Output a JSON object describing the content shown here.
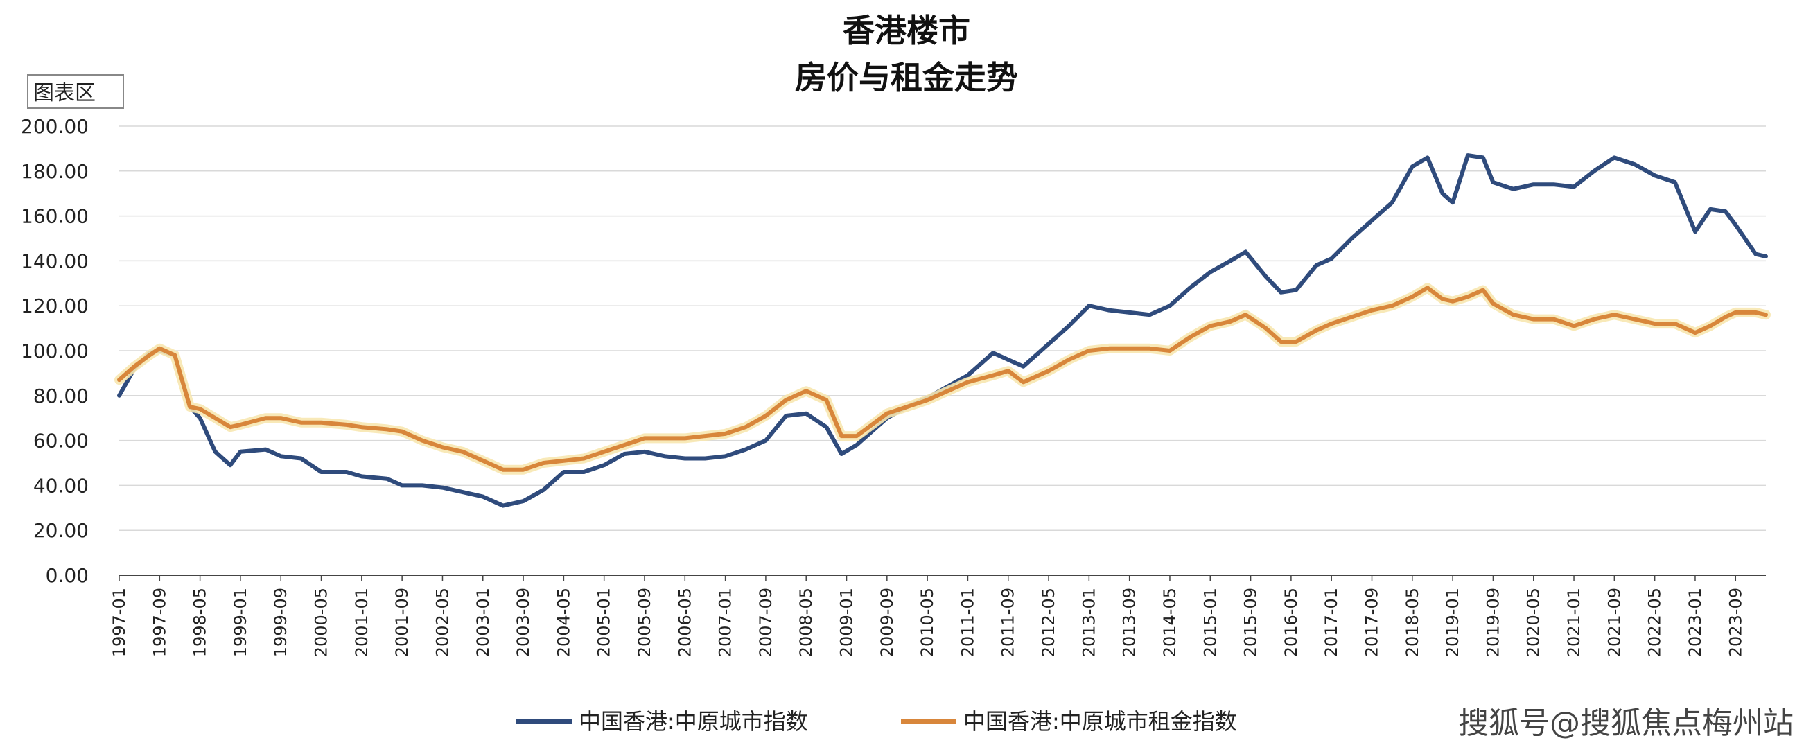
{
  "colors": {
    "price_series": "#2f4b7c",
    "rent_series": "#d8863b",
    "rent_glow": "#f7e7b0",
    "grid": "#d9d9d9",
    "axis": "#444444"
  },
  "chart_data": {
    "type": "line",
    "title": [
      "香港楼市",
      "房价与租金走势"
    ],
    "unit_label": "图表区",
    "ylim": [
      0,
      200
    ],
    "yticks": [
      "0.00",
      "20.00",
      "40.00",
      "60.00",
      "80.00",
      "100.00",
      "120.00",
      "140.00",
      "160.00",
      "180.00",
      "200.00"
    ],
    "grid": true,
    "legend_position": "bottom",
    "x_start": "1997-01",
    "x_end": "2024-03",
    "xticks": [
      "1997-01",
      "1997-09",
      "1998-05",
      "1999-01",
      "1999-09",
      "2000-05",
      "2001-01",
      "2001-09",
      "2002-05",
      "2003-01",
      "2003-09",
      "2004-05",
      "2005-01",
      "2005-09",
      "2006-05",
      "2007-01",
      "2007-09",
      "2008-05",
      "2009-01",
      "2009-09",
      "2010-05",
      "2011-01",
      "2011-09",
      "2012-05",
      "2013-01",
      "2013-09",
      "2014-05",
      "2015-01",
      "2015-09",
      "2016-05",
      "2017-01",
      "2017-09",
      "2018-05",
      "2019-01",
      "2019-09",
      "2020-05",
      "2021-01",
      "2021-09",
      "2022-05",
      "2023-01",
      "2023-09"
    ],
    "series": [
      {
        "name": "中国香港:中原城市指数",
        "color_key": "price_series",
        "points": [
          [
            "1997-01",
            80
          ],
          [
            "1997-04",
            92
          ],
          [
            "1997-07",
            99
          ],
          [
            "1997-09",
            100
          ],
          [
            "1997-12",
            98
          ],
          [
            "1998-03",
            75
          ],
          [
            "1998-05",
            70
          ],
          [
            "1998-08",
            55
          ],
          [
            "1998-11",
            49
          ],
          [
            "1999-01",
            55
          ],
          [
            "1999-06",
            56
          ],
          [
            "1999-09",
            53
          ],
          [
            "2000-01",
            52
          ],
          [
            "2000-05",
            46
          ],
          [
            "2000-10",
            46
          ],
          [
            "2001-01",
            44
          ],
          [
            "2001-06",
            43
          ],
          [
            "2001-09",
            40
          ],
          [
            "2002-01",
            40
          ],
          [
            "2002-05",
            39
          ],
          [
            "2002-09",
            37
          ],
          [
            "2003-01",
            35
          ],
          [
            "2003-05",
            31
          ],
          [
            "2003-09",
            33
          ],
          [
            "2004-01",
            38
          ],
          [
            "2004-05",
            46
          ],
          [
            "2004-09",
            46
          ],
          [
            "2005-01",
            49
          ],
          [
            "2005-05",
            54
          ],
          [
            "2005-09",
            55
          ],
          [
            "2006-01",
            53
          ],
          [
            "2006-05",
            52
          ],
          [
            "2006-09",
            52
          ],
          [
            "2007-01",
            53
          ],
          [
            "2007-05",
            56
          ],
          [
            "2007-09",
            60
          ],
          [
            "2008-01",
            71
          ],
          [
            "2008-05",
            72
          ],
          [
            "2008-09",
            66
          ],
          [
            "2008-12",
            54
          ],
          [
            "2009-03",
            58
          ],
          [
            "2009-09",
            70
          ],
          [
            "2010-01",
            75
          ],
          [
            "2010-05",
            79
          ],
          [
            "2010-09",
            84
          ],
          [
            "2011-01",
            89
          ],
          [
            "2011-06",
            99
          ],
          [
            "2011-09",
            96
          ],
          [
            "2011-12",
            93
          ],
          [
            "2012-05",
            103
          ],
          [
            "2012-09",
            111
          ],
          [
            "2013-01",
            120
          ],
          [
            "2013-05",
            118
          ],
          [
            "2013-09",
            117
          ],
          [
            "2014-01",
            116
          ],
          [
            "2014-05",
            120
          ],
          [
            "2014-09",
            128
          ],
          [
            "2015-01",
            135
          ],
          [
            "2015-05",
            140
          ],
          [
            "2015-08",
            144
          ],
          [
            "2015-12",
            133
          ],
          [
            "2016-03",
            126
          ],
          [
            "2016-06",
            127
          ],
          [
            "2016-10",
            138
          ],
          [
            "2017-01",
            141
          ],
          [
            "2017-05",
            150
          ],
          [
            "2017-09",
            158
          ],
          [
            "2018-01",
            166
          ],
          [
            "2018-05",
            182
          ],
          [
            "2018-08",
            186
          ],
          [
            "2018-11",
            170
          ],
          [
            "2019-01",
            166
          ],
          [
            "2019-04",
            187
          ],
          [
            "2019-07",
            186
          ],
          [
            "2019-09",
            175
          ],
          [
            "2020-01",
            172
          ],
          [
            "2020-05",
            174
          ],
          [
            "2020-09",
            174
          ],
          [
            "2021-01",
            173
          ],
          [
            "2021-05",
            180
          ],
          [
            "2021-09",
            186
          ],
          [
            "2022-01",
            183
          ],
          [
            "2022-05",
            178
          ],
          [
            "2022-09",
            175
          ],
          [
            "2023-01",
            153
          ],
          [
            "2023-04",
            163
          ],
          [
            "2023-07",
            162
          ],
          [
            "2023-09",
            156
          ],
          [
            "2024-01",
            143
          ],
          [
            "2024-03",
            142
          ]
        ]
      },
      {
        "name": "中国香港:中原城市租金指数",
        "color_key": "rent_series",
        "points": [
          [
            "1997-01",
            87
          ],
          [
            "1997-04",
            93
          ],
          [
            "1997-07",
            98
          ],
          [
            "1997-09",
            101
          ],
          [
            "1997-12",
            98
          ],
          [
            "1998-03",
            75
          ],
          [
            "1998-05",
            74
          ],
          [
            "1998-08",
            70
          ],
          [
            "1998-11",
            66
          ],
          [
            "1999-01",
            67
          ],
          [
            "1999-06",
            70
          ],
          [
            "1999-09",
            70
          ],
          [
            "2000-01",
            68
          ],
          [
            "2000-05",
            68
          ],
          [
            "2000-10",
            67
          ],
          [
            "2001-01",
            66
          ],
          [
            "2001-06",
            65
          ],
          [
            "2001-09",
            64
          ],
          [
            "2002-01",
            60
          ],
          [
            "2002-05",
            57
          ],
          [
            "2002-09",
            55
          ],
          [
            "2003-01",
            51
          ],
          [
            "2003-05",
            47
          ],
          [
            "2003-09",
            47
          ],
          [
            "2004-01",
            50
          ],
          [
            "2004-05",
            51
          ],
          [
            "2004-09",
            52
          ],
          [
            "2005-01",
            55
          ],
          [
            "2005-05",
            58
          ],
          [
            "2005-09",
            61
          ],
          [
            "2006-01",
            61
          ],
          [
            "2006-05",
            61
          ],
          [
            "2006-09",
            62
          ],
          [
            "2007-01",
            63
          ],
          [
            "2007-05",
            66
          ],
          [
            "2007-09",
            71
          ],
          [
            "2008-01",
            78
          ],
          [
            "2008-05",
            82
          ],
          [
            "2008-09",
            78
          ],
          [
            "2008-12",
            62
          ],
          [
            "2009-03",
            62
          ],
          [
            "2009-09",
            72
          ],
          [
            "2010-01",
            75
          ],
          [
            "2010-05",
            78
          ],
          [
            "2010-09",
            82
          ],
          [
            "2011-01",
            86
          ],
          [
            "2011-06",
            89
          ],
          [
            "2011-09",
            91
          ],
          [
            "2011-12",
            86
          ],
          [
            "2012-05",
            91
          ],
          [
            "2012-09",
            96
          ],
          [
            "2013-01",
            100
          ],
          [
            "2013-05",
            101
          ],
          [
            "2013-09",
            101
          ],
          [
            "2014-01",
            101
          ],
          [
            "2014-05",
            100
          ],
          [
            "2014-09",
            106
          ],
          [
            "2015-01",
            111
          ],
          [
            "2015-05",
            113
          ],
          [
            "2015-08",
            116
          ],
          [
            "2015-12",
            110
          ],
          [
            "2016-03",
            104
          ],
          [
            "2016-06",
            104
          ],
          [
            "2016-10",
            109
          ],
          [
            "2017-01",
            112
          ],
          [
            "2017-05",
            115
          ],
          [
            "2017-09",
            118
          ],
          [
            "2018-01",
            120
          ],
          [
            "2018-05",
            124
          ],
          [
            "2018-08",
            128
          ],
          [
            "2018-11",
            123
          ],
          [
            "2019-01",
            122
          ],
          [
            "2019-04",
            124
          ],
          [
            "2019-07",
            127
          ],
          [
            "2019-09",
            121
          ],
          [
            "2020-01",
            116
          ],
          [
            "2020-05",
            114
          ],
          [
            "2020-09",
            114
          ],
          [
            "2021-01",
            111
          ],
          [
            "2021-05",
            114
          ],
          [
            "2021-09",
            116
          ],
          [
            "2022-01",
            114
          ],
          [
            "2022-05",
            112
          ],
          [
            "2022-09",
            112
          ],
          [
            "2023-01",
            108
          ],
          [
            "2023-04",
            111
          ],
          [
            "2023-07",
            115
          ],
          [
            "2023-09",
            117
          ],
          [
            "2024-01",
            117
          ],
          [
            "2024-03",
            116
          ]
        ]
      }
    ]
  },
  "watermark": "搜狐号@搜狐焦点梅州站"
}
